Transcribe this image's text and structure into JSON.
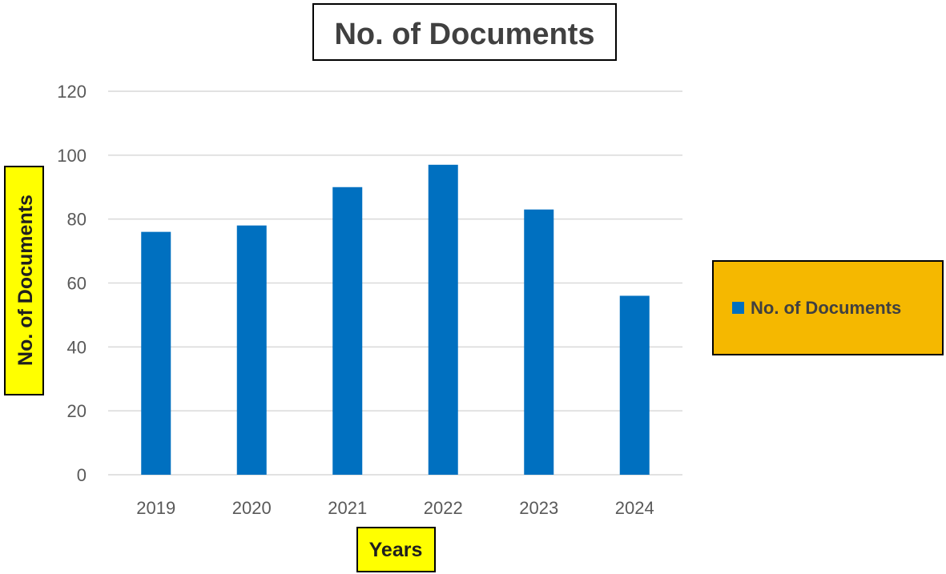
{
  "chart_data": {
    "type": "bar",
    "title": "No. of Documents",
    "xlabel": "Years",
    "ylabel": "No. of Documents",
    "categories": [
      "2019",
      "2020",
      "2021",
      "2022",
      "2023",
      "2024"
    ],
    "series": [
      {
        "name": "No. of Documents",
        "values": [
          76,
          78,
          90,
          97,
          83,
          56
        ]
      }
    ],
    "ylim": [
      0,
      120
    ],
    "yticks": [
      0,
      20,
      40,
      60,
      80,
      100,
      120
    ],
    "grid": true,
    "legend_position": "right",
    "colors": {
      "bar": "#0070c0",
      "ylabel_bg": "#ffff00",
      "xlabel_bg": "#ffff00",
      "legend_bg": "#f5b800",
      "grid": "#d9d9d9"
    }
  }
}
